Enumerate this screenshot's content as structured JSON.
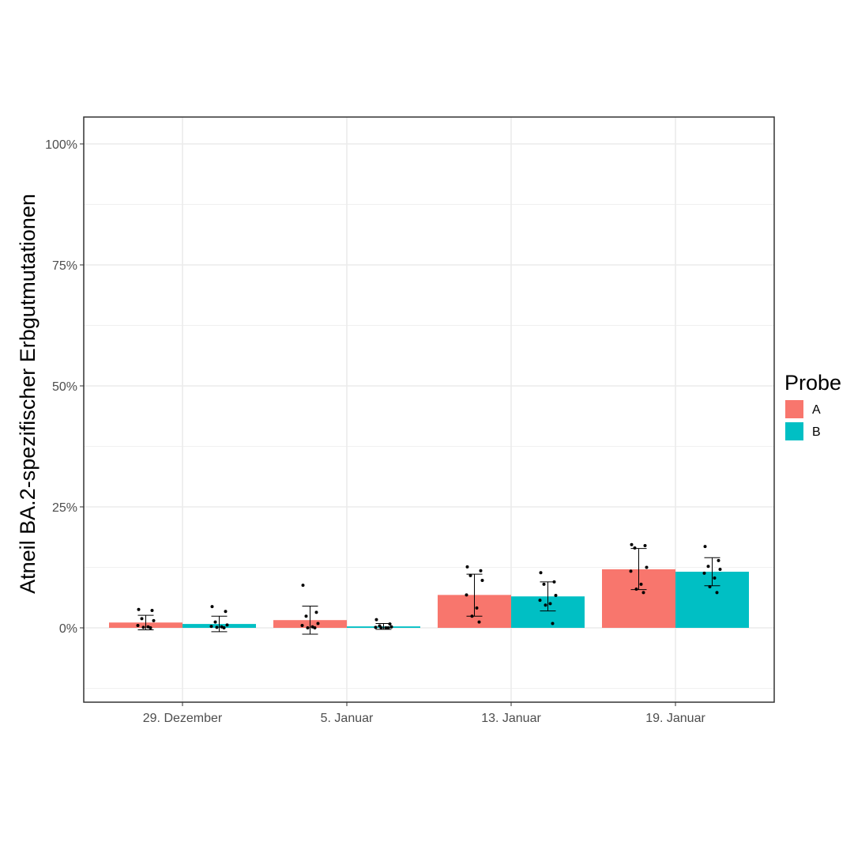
{
  "chart_data": {
    "type": "bar",
    "title": "",
    "xlabel": "",
    "ylabel": "Atneil BA.2-spezifischer Erbgutmutationen",
    "categories": [
      "29. Dezember",
      "5. Januar",
      "13. Januar",
      "19. Januar"
    ],
    "ylim": [
      -0.15,
      1.05
    ],
    "yticks": [
      0,
      0.25,
      0.5,
      0.75,
      1.0
    ],
    "ytick_labels": [
      "0%",
      "25%",
      "50%",
      "75%",
      "100%"
    ],
    "grid": true,
    "legend": {
      "title": "Probe",
      "placement": "right"
    },
    "series": [
      {
        "name": "A",
        "color": "#F8766D",
        "values": [
          0.011,
          0.016,
          0.068,
          0.121
        ],
        "error_low": [
          -0.004,
          -0.013,
          0.024,
          0.079
        ],
        "error_high": [
          0.026,
          0.045,
          0.111,
          0.164
        ],
        "points": [
          [
            0.038,
            0.036,
            0.019,
            0.015,
            0.005,
            0.002,
            0.001,
            0.0
          ],
          [
            0.088,
            0.032,
            0.024,
            0.009,
            0.005,
            0.002,
            0.0,
            0.0
          ],
          [
            0.126,
            0.118,
            0.108,
            0.098,
            0.068,
            0.041,
            0.024,
            0.012
          ],
          [
            0.172,
            0.17,
            0.165,
            0.125,
            0.117,
            0.09,
            0.08,
            0.073
          ]
        ]
      },
      {
        "name": "B",
        "color": "#00BFC4",
        "values": [
          0.008,
          0.003,
          0.065,
          0.116
        ],
        "error_low": [
          -0.008,
          -0.003,
          0.035,
          0.087
        ],
        "error_high": [
          0.024,
          0.009,
          0.095,
          0.145
        ],
        "points": [
          [
            0.044,
            0.034,
            0.012,
            0.006,
            0.003,
            0.002,
            0.001,
            0.0
          ],
          [
            0.017,
            0.008,
            0.004,
            0.002,
            0.001,
            0.0,
            0.0,
            0.0
          ],
          [
            0.114,
            0.095,
            0.09,
            0.067,
            0.057,
            0.05,
            0.047,
            0.009
          ],
          [
            0.168,
            0.139,
            0.127,
            0.121,
            0.113,
            0.103,
            0.085,
            0.073
          ]
        ]
      }
    ]
  }
}
